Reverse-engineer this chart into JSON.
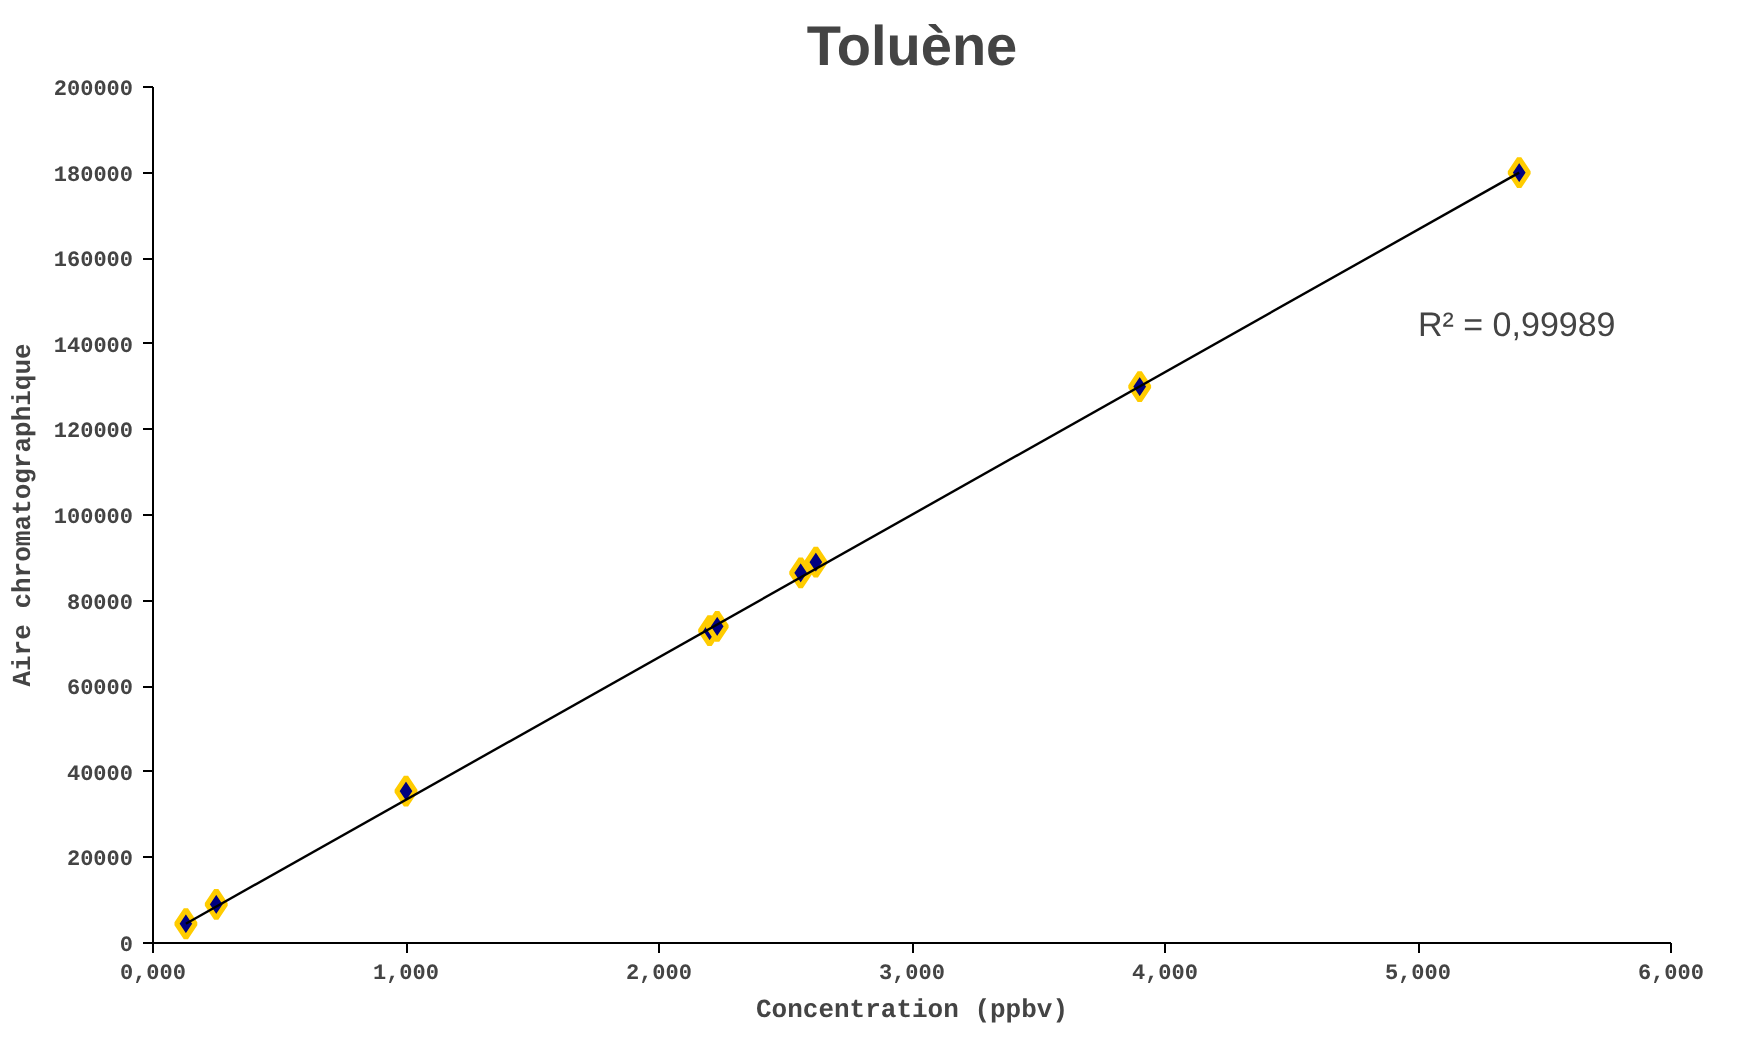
{
  "chart_data": {
    "type": "scatter",
    "title": "Toluène",
    "xlabel": "Concentration (ppbv)",
    "ylabel": "Aire chromatographique",
    "x": [
      0.13,
      0.25,
      1.0,
      2.2,
      2.23,
      2.56,
      2.62,
      3.9,
      5.4
    ],
    "series": [
      {
        "color": "#000080",
        "marker": "diamond",
        "values": [
          4500,
          9000,
          35500,
          73000,
          74000,
          86500,
          89000,
          130000,
          180000
        ]
      },
      {
        "type": "line",
        "color": "#000000",
        "marker": "none",
        "x": [
          0.13,
          5.4
        ],
        "values": [
          4500,
          180000
        ]
      }
    ],
    "xlim": [
      0,
      6
    ],
    "ylim": [
      0,
      200000
    ],
    "xticks": [
      {
        "value": 0,
        "label": "0,000"
      },
      {
        "value": 1,
        "label": "1,000"
      },
      {
        "value": 2,
        "label": "2,000"
      },
      {
        "value": 3,
        "label": "3,000"
      },
      {
        "value": 4,
        "label": "4,000"
      },
      {
        "value": 5,
        "label": "5,000"
      },
      {
        "value": 6,
        "label": "6,000"
      }
    ],
    "yticks": [
      0,
      20000,
      40000,
      60000,
      80000,
      100000,
      120000,
      140000,
      160000,
      180000,
      200000
    ],
    "annotations": [
      "R² = 0,99989"
    ],
    "grid": false
  }
}
